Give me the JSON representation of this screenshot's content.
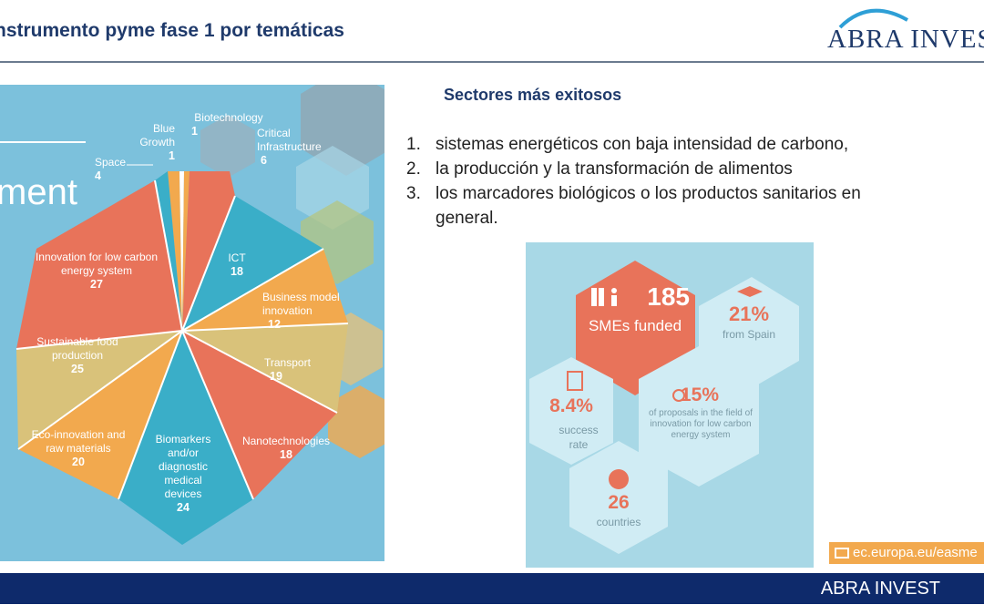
{
  "header": {
    "title": "nstrumento pyme fase 1 por temáticas",
    "logo": "ABRA INVEST"
  },
  "left_panel": {
    "heading_fragment": "ment",
    "sectors": [
      {
        "name": "Biotechnology",
        "value": "1"
      },
      {
        "name": "Blue Growth",
        "value": "1"
      },
      {
        "name": "Critical Infrastructure",
        "value": "6"
      },
      {
        "name": "Space",
        "value": "4"
      },
      {
        "name": "ICT",
        "value": "18"
      },
      {
        "name": "Innovation for low carbon energy system",
        "value": "27"
      },
      {
        "name": "Business model innovation",
        "value": "12"
      },
      {
        "name": "Sustainable food production",
        "value": "25"
      },
      {
        "name": "Transport",
        "value": "19"
      },
      {
        "name": "Eco-innovation and raw materials",
        "value": "20"
      },
      {
        "name": "Nanotechnologies",
        "value": "18"
      },
      {
        "name": "Biomarkers and/or diagnostic medical devices",
        "value": "24"
      }
    ]
  },
  "sectores": {
    "title": "Sectores más exitosos",
    "items": [
      "sistemas energéticos con baja intensidad de carbono,",
      "la producción y la transformación de alimentos",
      "los marcadores biológicos o los productos sanitarios en general."
    ]
  },
  "infographic": {
    "smes_number": "185",
    "smes_label": "SMEs funded",
    "spain_pct": "21%",
    "spain_label": "from Spain",
    "success_pct": "8.4%",
    "success_label": "success rate",
    "proposals_pct": "15%",
    "proposals_label": "of proposals in the field of innovation for low carbon energy system",
    "countries_number": "26",
    "countries_label": "countries"
  },
  "link": "ec.europa.eu/easme",
  "footer": {
    "text": "ABRA INVEST"
  },
  "colors": {
    "navy": "#1f3a6b",
    "coral": "#e8735a",
    "teal": "#3aaec8",
    "orange": "#f2a94e",
    "khaki": "#d9c27a"
  }
}
